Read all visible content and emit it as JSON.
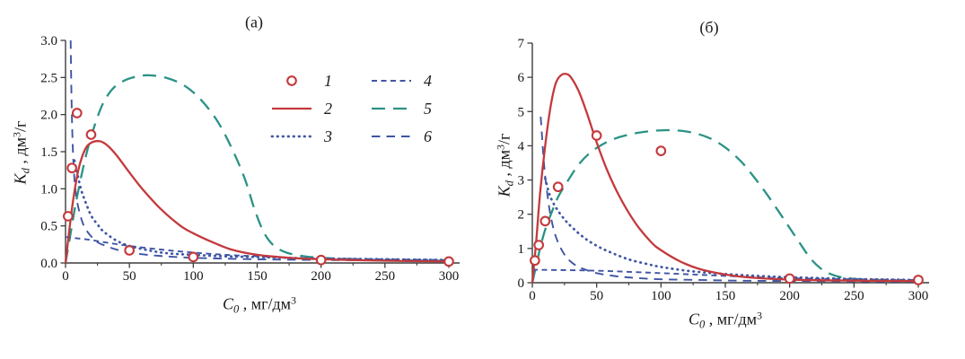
{
  "figure": {
    "background": "#ffffff"
  },
  "colors": {
    "red": "#c4393c",
    "blue": "#3f55a4",
    "teal": "#2b9285",
    "axis": "#3d3d3d",
    "text": "#151515",
    "marker_fill": "#ffffff"
  },
  "legend": {
    "items": [
      {
        "label": "1",
        "style": "marker",
        "color": "red"
      },
      {
        "label": "2",
        "style": "solid",
        "color": "red"
      },
      {
        "label": "3",
        "style": "dotted",
        "color": "blue"
      },
      {
        "label": "4",
        "style": "dash-short",
        "color": "blue"
      },
      {
        "label": "5",
        "style": "dash-long",
        "color": "teal"
      },
      {
        "label": "6",
        "style": "dash-med",
        "color": "blue"
      }
    ]
  },
  "chart_data": [
    {
      "id": "a",
      "type": "line",
      "title": "(а)",
      "xlabel": {
        "sym": "C",
        "sub": "0",
        "mid": " , мг/дм",
        "sup": "3",
        "end": ""
      },
      "ylabel": {
        "sym": "K",
        "sub": "d",
        "mid": " , дм",
        "sup": "3",
        "end": "/г"
      },
      "x_axis": {
        "min": 0,
        "max": 300,
        "major_ticks": [
          0,
          50,
          100,
          150,
          200,
          250,
          300
        ],
        "tick_labels": [
          "0",
          "50",
          "100",
          "150",
          "200",
          "250",
          "300"
        ],
        "minor_ticks": [
          25,
          75,
          125,
          175,
          225,
          275
        ]
      },
      "y_axis": {
        "min": 0,
        "max": 3,
        "major_ticks": [
          0,
          0.5,
          1,
          1.5,
          2,
          2.5,
          3
        ],
        "tick_labels": [
          "0.0",
          "0.5",
          "1.0",
          "1.5",
          "2.0",
          "2.5",
          "3.0"
        ]
      },
      "grid": false,
      "series": [
        {
          "name": "1",
          "type": "scatter",
          "color": "red",
          "points": [
            [
              2,
              0.63
            ],
            [
              5,
              1.28
            ],
            [
              9,
              2.02
            ],
            [
              20,
              1.73
            ],
            [
              50,
              0.17
            ],
            [
              100,
              0.08
            ],
            [
              200,
              0.04
            ],
            [
              300,
              0.02
            ]
          ]
        },
        {
          "name": "2",
          "type": "line",
          "style": "solid",
          "color": "red",
          "points": [
            [
              0,
              0
            ],
            [
              3,
              0.45
            ],
            [
              6,
              0.85
            ],
            [
              10,
              1.25
            ],
            [
              15,
              1.52
            ],
            [
              20,
              1.62
            ],
            [
              27,
              1.64
            ],
            [
              33,
              1.58
            ],
            [
              40,
              1.45
            ],
            [
              50,
              1.22
            ],
            [
              60,
              1.0
            ],
            [
              75,
              0.72
            ],
            [
              90,
              0.5
            ],
            [
              100,
              0.4
            ],
            [
              115,
              0.28
            ],
            [
              130,
              0.18
            ],
            [
              150,
              0.11
            ],
            [
              175,
              0.07
            ],
            [
              200,
              0.05
            ],
            [
              250,
              0.03
            ],
            [
              300,
              0.02
            ]
          ]
        },
        {
          "name": "3",
          "type": "line",
          "style": "dotted",
          "color": "blue",
          "points": [
            [
              7,
              1.38
            ],
            [
              9,
              1.22
            ],
            [
              12,
              1.0
            ],
            [
              15,
              0.85
            ],
            [
              20,
              0.64
            ],
            [
              25,
              0.52
            ],
            [
              30,
              0.42
            ],
            [
              40,
              0.3
            ],
            [
              50,
              0.23
            ],
            [
              65,
              0.17
            ],
            [
              80,
              0.13
            ],
            [
              100,
              0.11
            ],
            [
              125,
              0.09
            ],
            [
              150,
              0.08
            ],
            [
              200,
              0.06
            ],
            [
              250,
              0.05
            ],
            [
              300,
              0.04
            ]
          ]
        },
        {
          "name": "4",
          "type": "line",
          "style": "dash-short",
          "color": "blue",
          "points": [
            [
              0,
              0.35
            ],
            [
              10,
              0.33
            ],
            [
              20,
              0.31
            ],
            [
              30,
              0.28
            ],
            [
              50,
              0.23
            ],
            [
              75,
              0.18
            ],
            [
              100,
              0.14
            ],
            [
              125,
              0.11
            ],
            [
              150,
              0.09
            ],
            [
              175,
              0.07
            ],
            [
              200,
              0.06
            ],
            [
              250,
              0.05
            ],
            [
              300,
              0.04
            ]
          ]
        },
        {
          "name": "5",
          "type": "line",
          "style": "dash-long",
          "color": "teal",
          "points": [
            [
              0,
              0
            ],
            [
              4,
              0.4
            ],
            [
              8,
              0.8
            ],
            [
              14,
              1.3
            ],
            [
              20,
              1.7
            ],
            [
              28,
              2.1
            ],
            [
              36,
              2.33
            ],
            [
              45,
              2.45
            ],
            [
              55,
              2.51
            ],
            [
              65,
              2.53
            ],
            [
              78,
              2.5
            ],
            [
              90,
              2.42
            ],
            [
              100,
              2.3
            ],
            [
              110,
              2.12
            ],
            [
              120,
              1.88
            ],
            [
              130,
              1.55
            ],
            [
              140,
              1.15
            ],
            [
              148,
              0.72
            ],
            [
              155,
              0.42
            ],
            [
              162,
              0.25
            ],
            [
              170,
              0.16
            ],
            [
              180,
              0.11
            ],
            [
              200,
              0.07
            ],
            [
              250,
              0.04
            ],
            [
              300,
              0.03
            ]
          ]
        },
        {
          "name": "6",
          "type": "line",
          "style": "dash-med",
          "color": "blue",
          "points": [
            [
              4,
              3.0
            ],
            [
              4.6,
              2.3
            ],
            [
              5.4,
              1.7
            ],
            [
              6.5,
              1.25
            ],
            [
              8,
              0.95
            ],
            [
              10,
              0.75
            ],
            [
              13,
              0.56
            ],
            [
              16,
              0.45
            ],
            [
              20,
              0.36
            ],
            [
              25,
              0.28
            ],
            [
              30,
              0.24
            ],
            [
              40,
              0.18
            ],
            [
              50,
              0.14
            ],
            [
              70,
              0.1
            ],
            [
              100,
              0.07
            ],
            [
              150,
              0.05
            ],
            [
              200,
              0.04
            ],
            [
              300,
              0.03
            ]
          ]
        }
      ]
    },
    {
      "id": "b",
      "type": "line",
      "title": "(б)",
      "xlabel": {
        "sym": "C",
        "sub": "0",
        "mid": " , мг/дм",
        "sup": "3",
        "end": ""
      },
      "ylabel": {
        "sym": "K",
        "sub": "d",
        "mid": " , дм",
        "sup": "3",
        "end": "/г"
      },
      "x_axis": {
        "min": 0,
        "max": 300,
        "major_ticks": [
          0,
          50,
          100,
          150,
          200,
          250,
          300
        ],
        "tick_labels": [
          "0",
          "50",
          "100",
          "150",
          "200",
          "250",
          "300"
        ],
        "minor_ticks": [
          25,
          75,
          125,
          175,
          225,
          275
        ]
      },
      "y_axis": {
        "min": 0,
        "max": 7,
        "major_ticks": [
          0,
          1,
          2,
          3,
          4,
          5,
          6,
          7
        ],
        "tick_labels": [
          "0",
          "1",
          "2",
          "3",
          "4",
          "5",
          "6",
          "7"
        ]
      },
      "grid": false,
      "series": [
        {
          "name": "1",
          "type": "scatter",
          "color": "red",
          "points": [
            [
              2,
              0.65
            ],
            [
              5,
              1.1
            ],
            [
              10,
              1.8
            ],
            [
              20,
              2.8
            ],
            [
              50,
              4.3
            ],
            [
              100,
              3.85
            ],
            [
              200,
              0.12
            ],
            [
              300,
              0.08
            ]
          ]
        },
        {
          "name": "2",
          "type": "line",
          "style": "solid",
          "color": "red",
          "points": [
            [
              0,
              0
            ],
            [
              3,
              1.2
            ],
            [
              6,
              2.6
            ],
            [
              10,
              4.0
            ],
            [
              14,
              5.1
            ],
            [
              18,
              5.8
            ],
            [
              22,
              6.05
            ],
            [
              26,
              6.1
            ],
            [
              30,
              6.0
            ],
            [
              36,
              5.6
            ],
            [
              42,
              5.0
            ],
            [
              50,
              4.1
            ],
            [
              58,
              3.3
            ],
            [
              68,
              2.5
            ],
            [
              80,
              1.75
            ],
            [
              92,
              1.2
            ],
            [
              100,
              0.95
            ],
            [
              115,
              0.62
            ],
            [
              130,
              0.4
            ],
            [
              150,
              0.24
            ],
            [
              170,
              0.15
            ],
            [
              200,
              0.09
            ],
            [
              250,
              0.06
            ],
            [
              300,
              0.05
            ]
          ]
        },
        {
          "name": "3",
          "type": "line",
          "style": "dotted",
          "color": "blue",
          "points": [
            [
              10,
              3.05
            ],
            [
              13,
              2.62
            ],
            [
              16,
              2.35
            ],
            [
              20,
              2.1
            ],
            [
              25,
              1.85
            ],
            [
              30,
              1.65
            ],
            [
              40,
              1.32
            ],
            [
              50,
              1.08
            ],
            [
              60,
              0.9
            ],
            [
              75,
              0.68
            ],
            [
              90,
              0.54
            ],
            [
              100,
              0.46
            ],
            [
              120,
              0.35
            ],
            [
              140,
              0.28
            ],
            [
              160,
              0.23
            ],
            [
              180,
              0.19
            ],
            [
              200,
              0.16
            ],
            [
              250,
              0.11
            ],
            [
              300,
              0.08
            ]
          ]
        },
        {
          "name": "4",
          "type": "line",
          "style": "dash-short",
          "color": "blue",
          "points": [
            [
              0,
              0.38
            ],
            [
              20,
              0.37
            ],
            [
              40,
              0.36
            ],
            [
              60,
              0.34
            ],
            [
              80,
              0.31
            ],
            [
              100,
              0.28
            ],
            [
              125,
              0.24
            ],
            [
              150,
              0.2
            ],
            [
              175,
              0.16
            ],
            [
              200,
              0.13
            ],
            [
              250,
              0.1
            ],
            [
              300,
              0.08
            ]
          ]
        },
        {
          "name": "5",
          "type": "line",
          "style": "dash-long",
          "color": "teal",
          "points": [
            [
              0,
              0
            ],
            [
              3,
              0.5
            ],
            [
              6,
              1.0
            ],
            [
              10,
              1.55
            ],
            [
              15,
              2.05
            ],
            [
              20,
              2.5
            ],
            [
              28,
              3.0
            ],
            [
              36,
              3.45
            ],
            [
              45,
              3.8
            ],
            [
              55,
              4.05
            ],
            [
              65,
              4.22
            ],
            [
              78,
              4.35
            ],
            [
              90,
              4.42
            ],
            [
              100,
              4.45
            ],
            [
              112,
              4.45
            ],
            [
              125,
              4.38
            ],
            [
              138,
              4.22
            ],
            [
              150,
              3.95
            ],
            [
              162,
              3.55
            ],
            [
              172,
              3.1
            ],
            [
              182,
              2.6
            ],
            [
              192,
              2.05
            ],
            [
              200,
              1.6
            ],
            [
              208,
              1.15
            ],
            [
              216,
              0.72
            ],
            [
              224,
              0.42
            ],
            [
              232,
              0.25
            ],
            [
              240,
              0.16
            ],
            [
              255,
              0.1
            ],
            [
              270,
              0.08
            ],
            [
              300,
              0.05
            ]
          ]
        },
        {
          "name": "6",
          "type": "line",
          "style": "dash-med",
          "color": "blue",
          "points": [
            [
              6.5,
              4.85
            ],
            [
              7.5,
              4.3
            ],
            [
              8.5,
              3.75
            ],
            [
              10,
              3.1
            ],
            [
              12,
              2.5
            ],
            [
              14,
              2.0
            ],
            [
              17,
              1.5
            ],
            [
              20,
              1.18
            ],
            [
              24,
              0.88
            ],
            [
              28,
              0.68
            ],
            [
              34,
              0.5
            ],
            [
              40,
              0.4
            ],
            [
              50,
              0.28
            ],
            [
              65,
              0.19
            ],
            [
              80,
              0.14
            ],
            [
              100,
              0.1
            ],
            [
              130,
              0.08
            ],
            [
              160,
              0.06
            ],
            [
              200,
              0.05
            ],
            [
              250,
              0.04
            ],
            [
              300,
              0.03
            ]
          ]
        }
      ]
    }
  ]
}
